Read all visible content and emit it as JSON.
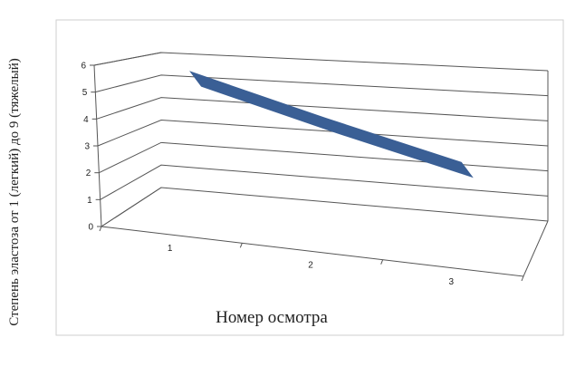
{
  "chart_data": {
    "type": "line",
    "view": "3d",
    "x": [
      "1",
      "2",
      "3"
    ],
    "series": [
      {
        "values": [
          5.5,
          4.2,
          3.0
        ],
        "color": "#3a5f95"
      }
    ],
    "ylim": [
      0,
      6
    ],
    "yticks": [
      "0",
      "1",
      "2",
      "3",
      "4",
      "5",
      "6"
    ],
    "xlabel": "Номер осмотра",
    "ylabel": "Степень эластоза от 1 (легкий) до 9 (тяжелый)",
    "grid": true,
    "legend": "none"
  }
}
